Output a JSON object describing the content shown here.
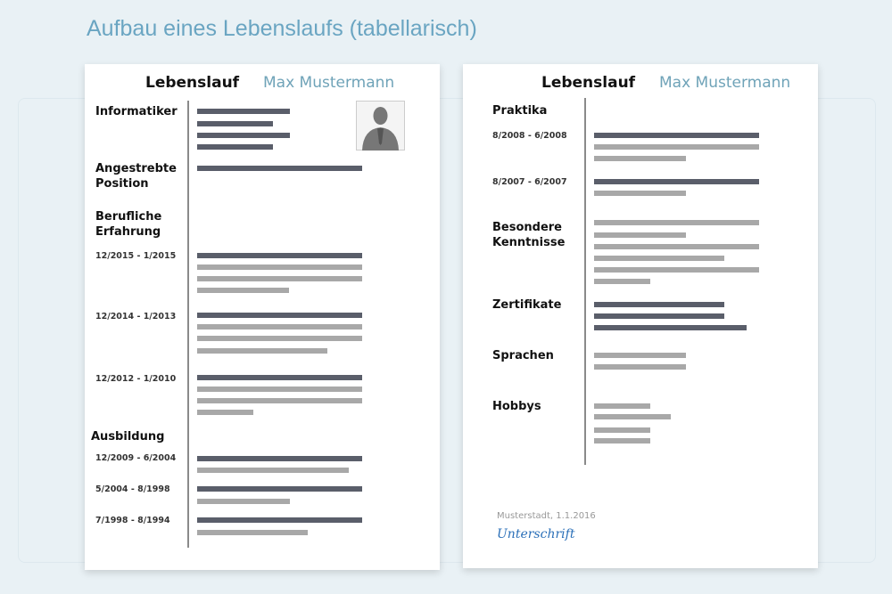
{
  "title": "Aufbau eines Lebenslaufs (tabellarisch)",
  "pages": [
    {
      "heading": "Lebenslauf",
      "name": "Max Mustermann",
      "labels": [
        "Informatiker",
        "Angestrebte Position",
        "Berufliche Erfahrung",
        "12/2015 - 1/2015",
        "12/2014 - 1/2013",
        "12/2012 - 1/2010",
        "Ausbildung",
        "12/2009 - 6/2004",
        "5/2004 - 8/1998",
        "7/1998 - 8/1994"
      ]
    },
    {
      "heading": "Lebenslauf",
      "name": "Max Mustermann",
      "labels": [
        "Praktika",
        "8/2008 - 6/2008",
        "8/2007 - 6/2007",
        "Besondere Kenntnisse",
        "Zertifikate",
        "Sprachen",
        "Hobbys"
      ],
      "place_date": "Musterstadt, 1.1.2016",
      "signature": "Unterschrift"
    }
  ]
}
